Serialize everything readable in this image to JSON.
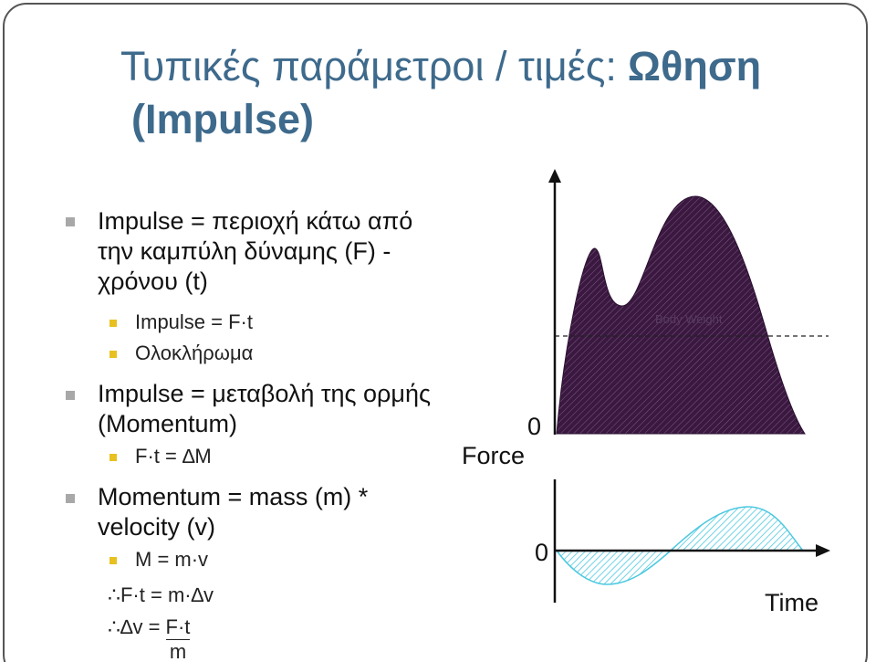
{
  "title": {
    "text": "Τυπικές παράμετροι / τιμές:",
    "bold": "Ωθηση",
    "line2": "(Impulse)"
  },
  "bullets": [
    {
      "text": "Impulse = περιοχή κάτω από την καμπύλη δύναμης (F) - χρόνου (t)",
      "sub": [
        "Impulse = F·t",
        "Ολοκλήρωμα"
      ]
    },
    {
      "text": "Impulse = μεταβολή της ορμής (Momentum)",
      "sub": [
        "F·t = ∆M"
      ]
    },
    {
      "text": "Momentum = mass (m) * velocity (v)",
      "sub": [
        "M = m·v"
      ]
    }
  ],
  "equations": {
    "line1": "∴F·t = m·∆v",
    "line2": {
      "prefix": "∴∆v =",
      "numerator": "F·t",
      "denominator": "m"
    }
  },
  "diagram": {
    "force_zero": "0",
    "force_label": "Force",
    "body_weight": "Body Weight",
    "time_zero": "0",
    "time_label": "Time"
  }
}
